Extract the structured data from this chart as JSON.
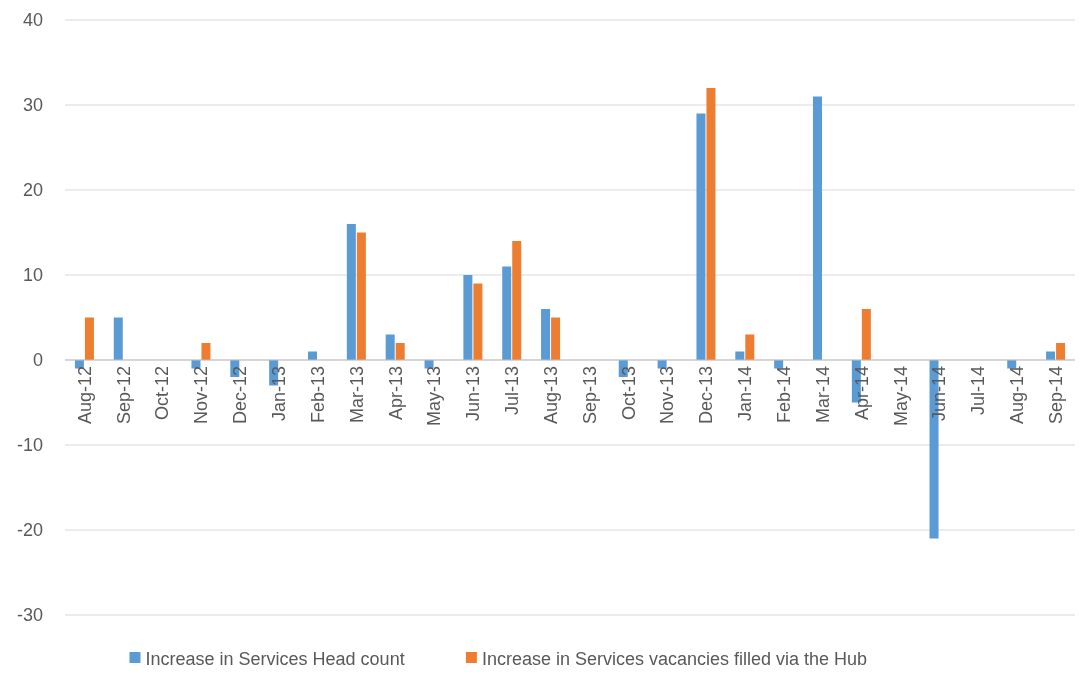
{
  "chart_data": {
    "type": "bar",
    "categories": [
      "Aug-12",
      "Sep-12",
      "Oct-12",
      "Nov-12",
      "Dec-12",
      "Jan-13",
      "Feb-13",
      "Mar-13",
      "Apr-13",
      "May-13",
      "Jun-13",
      "Jul-13",
      "Aug-13",
      "Sep-13",
      "Oct-13",
      "Nov-13",
      "Dec-13",
      "Jan-14",
      "Feb-14",
      "Mar-14",
      "Apr-14",
      "May-14",
      "Jun-14",
      "Jul-14",
      "Aug-14",
      "Sep-14"
    ],
    "series": [
      {
        "name": "Increase in Services Head count",
        "color": "#5b9bd5",
        "values": [
          -1,
          5,
          0,
          -1,
          -2,
          -3,
          1,
          16,
          3,
          -1,
          10,
          11,
          6,
          0,
          -2,
          -1,
          29,
          1,
          -1,
          31,
          -5,
          0,
          -21,
          0,
          -1,
          1
        ]
      },
      {
        "name": "Increase in Services vacancies filled via the Hub",
        "color": "#ed7d31",
        "values": [
          5,
          0,
          0,
          2,
          0,
          0,
          0,
          15,
          2,
          0,
          9,
          14,
          5,
          0,
          0,
          0,
          32,
          3,
          0,
          0,
          6,
          0,
          0,
          0,
          0,
          2
        ]
      }
    ],
    "ylim": [
      -30,
      40
    ],
    "yticks": [
      -30,
      -20,
      -10,
      0,
      10,
      20,
      30,
      40
    ],
    "grid": "y",
    "legend": "bottom"
  }
}
